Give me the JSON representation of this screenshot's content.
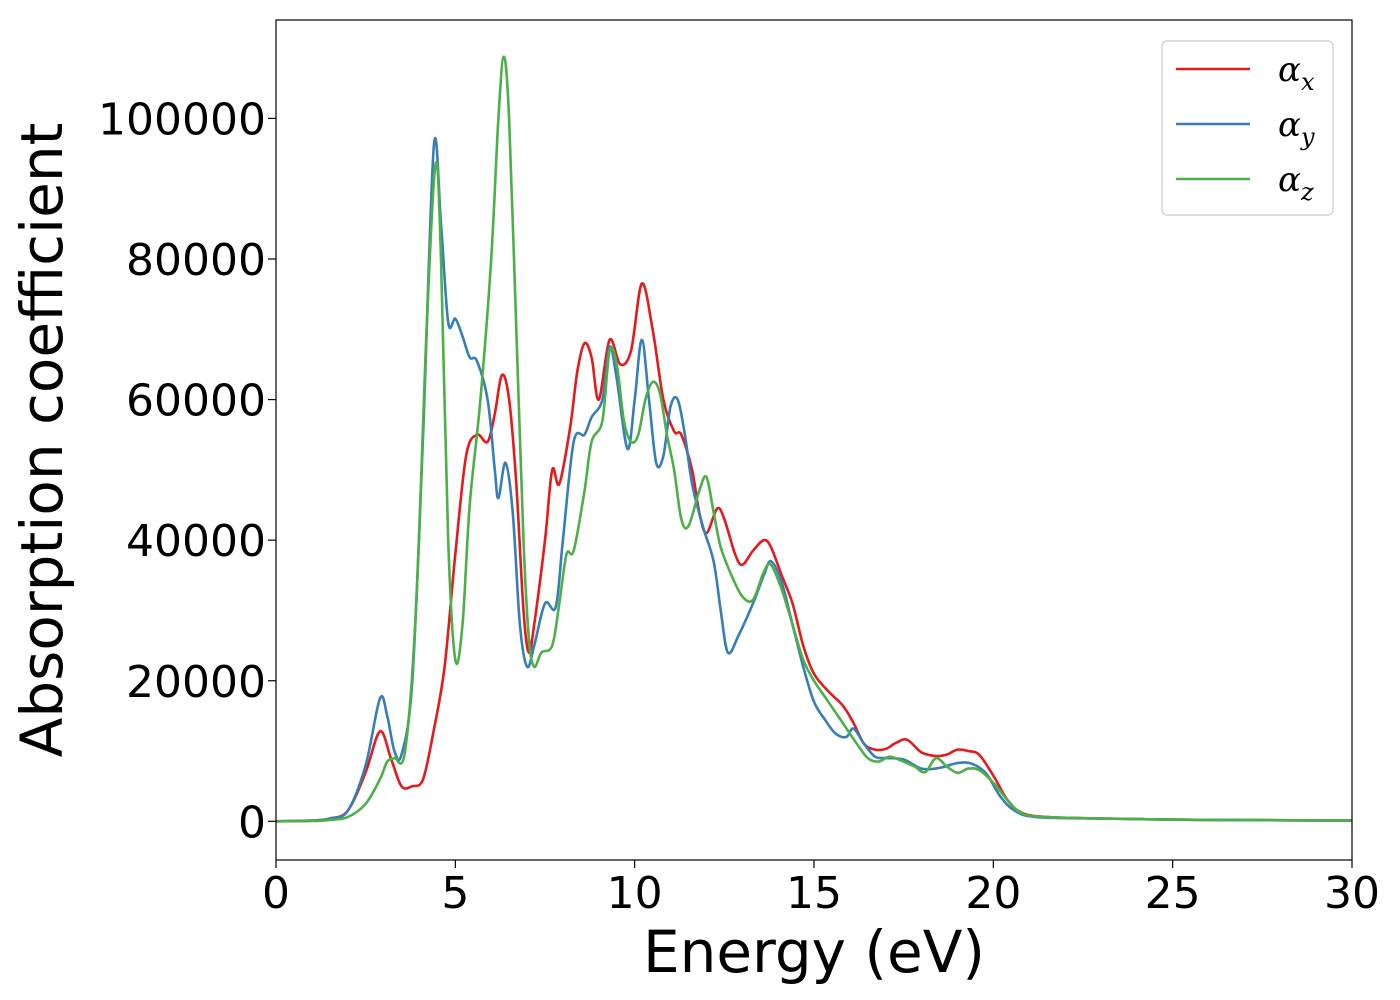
{
  "chart_data": {
    "type": "line",
    "xlabel": "Energy (eV)",
    "ylabel": "Absorption coefficient",
    "xlim": [
      0,
      30
    ],
    "ylim": [
      -5500,
      114000
    ],
    "xticks": [
      0,
      5,
      10,
      15,
      20,
      25,
      30
    ],
    "yticks": [
      0,
      20000,
      40000,
      60000,
      80000,
      100000
    ],
    "grid": false,
    "legend_position": "top-right",
    "series": [
      {
        "name": "α",
        "subscript": "x",
        "color": "#e41a1c",
        "points": [
          [
            0,
            0
          ],
          [
            1,
            100
          ],
          [
            1.5,
            400
          ],
          [
            2,
            1500
          ],
          [
            2.5,
            7000
          ],
          [
            2.9,
            12800
          ],
          [
            3.2,
            9000
          ],
          [
            3.5,
            5000
          ],
          [
            3.8,
            5000
          ],
          [
            4.1,
            6000
          ],
          [
            4.4,
            13000
          ],
          [
            4.7,
            22000
          ],
          [
            5,
            38000
          ],
          [
            5.3,
            52000
          ],
          [
            5.6,
            55000
          ],
          [
            5.9,
            54000
          ],
          [
            6.1,
            58000
          ],
          [
            6.3,
            63500
          ],
          [
            6.5,
            60000
          ],
          [
            6.7,
            48000
          ],
          [
            6.9,
            30000
          ],
          [
            7.05,
            24000
          ],
          [
            7.2,
            28000
          ],
          [
            7.5,
            40000
          ],
          [
            7.7,
            50000
          ],
          [
            7.9,
            48000
          ],
          [
            8.2,
            56000
          ],
          [
            8.4,
            64000
          ],
          [
            8.6,
            68000
          ],
          [
            8.8,
            66000
          ],
          [
            9,
            60000
          ],
          [
            9.3,
            68500
          ],
          [
            9.6,
            65000
          ],
          [
            9.9,
            67000
          ],
          [
            10.2,
            76500
          ],
          [
            10.5,
            70000
          ],
          [
            10.8,
            60000
          ],
          [
            11.1,
            55500
          ],
          [
            11.3,
            55000
          ],
          [
            11.6,
            50000
          ],
          [
            11.8,
            44000
          ],
          [
            12,
            41000
          ],
          [
            12.3,
            44500
          ],
          [
            12.5,
            43000
          ],
          [
            12.8,
            38000
          ],
          [
            13,
            36500
          ],
          [
            13.3,
            38500
          ],
          [
            13.6,
            40000
          ],
          [
            13.8,
            39000
          ],
          [
            14.1,
            35000
          ],
          [
            14.4,
            31000
          ],
          [
            14.7,
            25000
          ],
          [
            15,
            21000
          ],
          [
            15.4,
            18500
          ],
          [
            15.8,
            16500
          ],
          [
            16.1,
            14000
          ],
          [
            16.4,
            11000
          ],
          [
            16.7,
            10200
          ],
          [
            17,
            10300
          ],
          [
            17.3,
            11200
          ],
          [
            17.6,
            11600
          ],
          [
            18,
            9800
          ],
          [
            18.4,
            9300
          ],
          [
            18.7,
            9500
          ],
          [
            19,
            10200
          ],
          [
            19.3,
            10000
          ],
          [
            19.6,
            9500
          ],
          [
            20,
            6500
          ],
          [
            20.4,
            3000
          ],
          [
            20.8,
            1200
          ],
          [
            21.5,
            600
          ],
          [
            23,
            400
          ],
          [
            25,
            250
          ],
          [
            27,
            180
          ],
          [
            30,
            100
          ]
        ]
      },
      {
        "name": "α",
        "subscript": "y",
        "color": "#377eb8",
        "points": [
          [
            0,
            0
          ],
          [
            1,
            100
          ],
          [
            1.5,
            400
          ],
          [
            2,
            1500
          ],
          [
            2.5,
            8000
          ],
          [
            2.9,
            17500
          ],
          [
            3.1,
            15000
          ],
          [
            3.3,
            10000
          ],
          [
            3.5,
            9500
          ],
          [
            3.8,
            20000
          ],
          [
            4.1,
            55000
          ],
          [
            4.4,
            96000
          ],
          [
            4.6,
            85000
          ],
          [
            4.8,
            71000
          ],
          [
            5,
            71500
          ],
          [
            5.2,
            69000
          ],
          [
            5.4,
            66000
          ],
          [
            5.6,
            65500
          ],
          [
            5.9,
            60000
          ],
          [
            6.1,
            50000
          ],
          [
            6.2,
            46000
          ],
          [
            6.4,
            51000
          ],
          [
            6.6,
            44000
          ],
          [
            6.8,
            28000
          ],
          [
            7,
            22000
          ],
          [
            7.2,
            25000
          ],
          [
            7.5,
            31000
          ],
          [
            7.8,
            30500
          ],
          [
            8,
            40000
          ],
          [
            8.3,
            54000
          ],
          [
            8.6,
            55000
          ],
          [
            8.8,
            57500
          ],
          [
            9.1,
            60000
          ],
          [
            9.3,
            67500
          ],
          [
            9.5,
            63000
          ],
          [
            9.8,
            53000
          ],
          [
            10,
            60000
          ],
          [
            10.2,
            68500
          ],
          [
            10.4,
            60000
          ],
          [
            10.6,
            51000
          ],
          [
            10.8,
            52000
          ],
          [
            11,
            59000
          ],
          [
            11.2,
            60000
          ],
          [
            11.4,
            55000
          ],
          [
            11.6,
            48000
          ],
          [
            11.9,
            42000
          ],
          [
            12.2,
            37000
          ],
          [
            12.4,
            30000
          ],
          [
            12.6,
            24000
          ],
          [
            12.9,
            26500
          ],
          [
            13.3,
            31000
          ],
          [
            13.6,
            35000
          ],
          [
            13.8,
            37000
          ],
          [
            14.1,
            34000
          ],
          [
            14.4,
            28000
          ],
          [
            14.7,
            22000
          ],
          [
            15,
            17000
          ],
          [
            15.3,
            14500
          ],
          [
            15.6,
            12500
          ],
          [
            15.9,
            12000
          ],
          [
            16.1,
            13200
          ],
          [
            16.4,
            11000
          ],
          [
            16.7,
            9200
          ],
          [
            17,
            9000
          ],
          [
            17.5,
            8800
          ],
          [
            18,
            7500
          ],
          [
            18.5,
            7600
          ],
          [
            19,
            8300
          ],
          [
            19.4,
            8200
          ],
          [
            19.8,
            6800
          ],
          [
            20.2,
            3500
          ],
          [
            20.6,
            1500
          ],
          [
            21.2,
            600
          ],
          [
            23,
            400
          ],
          [
            25,
            250
          ],
          [
            27,
            180
          ],
          [
            30,
            100
          ]
        ]
      },
      {
        "name": "α",
        "subscript": "z",
        "color": "#4daf4a",
        "points": [
          [
            0,
            0
          ],
          [
            1,
            50
          ],
          [
            1.5,
            200
          ],
          [
            2,
            600
          ],
          [
            2.5,
            2500
          ],
          [
            2.9,
            6000
          ],
          [
            3.1,
            8500
          ],
          [
            3.3,
            9000
          ],
          [
            3.6,
            10000
          ],
          [
            3.9,
            30000
          ],
          [
            4.2,
            70000
          ],
          [
            4.45,
            93500
          ],
          [
            4.6,
            80000
          ],
          [
            4.8,
            40000
          ],
          [
            5,
            23000
          ],
          [
            5.2,
            28000
          ],
          [
            5.4,
            45000
          ],
          [
            5.7,
            60000
          ],
          [
            6,
            80000
          ],
          [
            6.2,
            100000
          ],
          [
            6.35,
            108800
          ],
          [
            6.5,
            100000
          ],
          [
            6.7,
            70000
          ],
          [
            6.9,
            40000
          ],
          [
            7.05,
            26000
          ],
          [
            7.2,
            22000
          ],
          [
            7.4,
            24000
          ],
          [
            7.7,
            25000
          ],
          [
            7.9,
            31000
          ],
          [
            8.1,
            38000
          ],
          [
            8.3,
            38500
          ],
          [
            8.6,
            47000
          ],
          [
            8.8,
            54000
          ],
          [
            9.1,
            57000
          ],
          [
            9.3,
            67000
          ],
          [
            9.5,
            65000
          ],
          [
            9.7,
            57000
          ],
          [
            9.9,
            54000
          ],
          [
            10.1,
            55000
          ],
          [
            10.3,
            60000
          ],
          [
            10.5,
            62500
          ],
          [
            10.7,
            61000
          ],
          [
            10.9,
            55000
          ],
          [
            11.1,
            50000
          ],
          [
            11.3,
            43000
          ],
          [
            11.5,
            42000
          ],
          [
            11.8,
            47000
          ],
          [
            12,
            49000
          ],
          [
            12.2,
            44000
          ],
          [
            12.4,
            39000
          ],
          [
            12.7,
            35000
          ],
          [
            13,
            32000
          ],
          [
            13.3,
            31500
          ],
          [
            13.6,
            35500
          ],
          [
            13.8,
            36500
          ],
          [
            14.1,
            33000
          ],
          [
            14.4,
            28000
          ],
          [
            14.7,
            23000
          ],
          [
            15,
            20000
          ],
          [
            15.4,
            17000
          ],
          [
            15.8,
            14000
          ],
          [
            16.2,
            11000
          ],
          [
            16.5,
            9000
          ],
          [
            16.8,
            8500
          ],
          [
            17.1,
            9200
          ],
          [
            17.4,
            8700
          ],
          [
            17.8,
            7800
          ],
          [
            18.1,
            7000
          ],
          [
            18.4,
            9000
          ],
          [
            18.7,
            7800
          ],
          [
            19,
            6900
          ],
          [
            19.3,
            7500
          ],
          [
            19.6,
            7300
          ],
          [
            20,
            5500
          ],
          [
            20.4,
            3000
          ],
          [
            20.8,
            1100
          ],
          [
            21.5,
            600
          ],
          [
            23,
            400
          ],
          [
            25,
            250
          ],
          [
            27,
            180
          ],
          [
            30,
            100
          ]
        ]
      }
    ]
  }
}
